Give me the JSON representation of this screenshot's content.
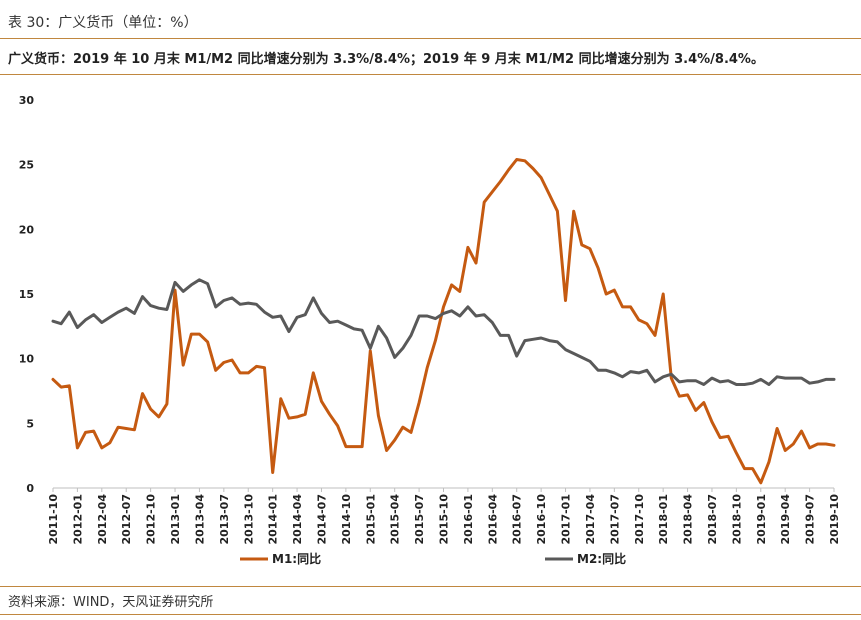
{
  "header": {
    "caption": "表 30：广义货币（单位：%）",
    "subtitle": "广义货币：2019 年 10 月末 M1/M2 同比增速分别为 3.3%/8.4%；2019 年 9 月末 M1/M2 同比增速分别为 3.4%/8.4%。"
  },
  "footer": {
    "source": "资料来源：WIND，天风证券研究所"
  },
  "colors": {
    "m1": "#c55a11",
    "m2": "#595959",
    "rule": "#c0873f"
  },
  "chart_data": {
    "type": "line",
    "title": "",
    "xlabel": "",
    "ylabel": "",
    "ylim": [
      0,
      30
    ],
    "yticks": [
      0,
      5,
      10,
      15,
      20,
      25,
      30
    ],
    "grid": false,
    "legend_position": "bottom",
    "x_tick_labels": [
      "2011-10",
      "2012-01",
      "2012-04",
      "2012-07",
      "2012-10",
      "2013-01",
      "2013-04",
      "2013-07",
      "2013-10",
      "2014-01",
      "2014-04",
      "2014-07",
      "2014-10",
      "2015-01",
      "2015-04",
      "2015-07",
      "2015-10",
      "2016-01",
      "2016-04",
      "2016-07",
      "2016-10",
      "2017-01",
      "2017-04",
      "2017-07",
      "2017-10",
      "2018-01",
      "2018-04",
      "2018-07",
      "2018-10",
      "2019-01",
      "2019-04",
      "2019-07",
      "2019-10"
    ],
    "x": [
      "2011-10",
      "2011-11",
      "2011-12",
      "2012-01",
      "2012-02",
      "2012-03",
      "2012-04",
      "2012-05",
      "2012-06",
      "2012-07",
      "2012-08",
      "2012-09",
      "2012-10",
      "2012-11",
      "2012-12",
      "2013-01",
      "2013-02",
      "2013-03",
      "2013-04",
      "2013-05",
      "2013-06",
      "2013-07",
      "2013-08",
      "2013-09",
      "2013-10",
      "2013-11",
      "2013-12",
      "2014-01",
      "2014-02",
      "2014-03",
      "2014-04",
      "2014-05",
      "2014-06",
      "2014-07",
      "2014-08",
      "2014-09",
      "2014-10",
      "2014-11",
      "2014-12",
      "2015-01",
      "2015-02",
      "2015-03",
      "2015-04",
      "2015-05",
      "2015-06",
      "2015-07",
      "2015-08",
      "2015-09",
      "2015-10",
      "2015-11",
      "2015-12",
      "2016-01",
      "2016-02",
      "2016-03",
      "2016-04",
      "2016-05",
      "2016-06",
      "2016-07",
      "2016-08",
      "2016-09",
      "2016-10",
      "2016-11",
      "2016-12",
      "2017-01",
      "2017-02",
      "2017-03",
      "2017-04",
      "2017-05",
      "2017-06",
      "2017-07",
      "2017-08",
      "2017-09",
      "2017-10",
      "2017-11",
      "2017-12",
      "2018-01",
      "2018-02",
      "2018-03",
      "2018-04",
      "2018-05",
      "2018-06",
      "2018-07",
      "2018-08",
      "2018-09",
      "2018-10",
      "2018-11",
      "2018-12",
      "2019-01",
      "2019-02",
      "2019-03",
      "2019-04",
      "2019-05",
      "2019-06",
      "2019-07",
      "2019-08",
      "2019-09",
      "2019-10"
    ],
    "series": [
      {
        "name": "M1:同比",
        "color": "#c55a11",
        "values": [
          8.4,
          7.8,
          7.9,
          3.1,
          4.3,
          4.4,
          3.1,
          3.5,
          4.7,
          4.6,
          4.5,
          7.3,
          6.1,
          5.5,
          6.5,
          15.3,
          9.5,
          11.9,
          11.9,
          11.3,
          9.1,
          9.7,
          9.9,
          8.9,
          8.9,
          9.4,
          9.3,
          1.2,
          6.9,
          5.4,
          5.5,
          5.7,
          8.9,
          6.7,
          5.7,
          4.8,
          3.2,
          3.2,
          3.2,
          10.6,
          5.6,
          2.9,
          3.7,
          4.7,
          4.3,
          6.6,
          9.3,
          11.4,
          14.0,
          15.7,
          15.2,
          18.6,
          17.4,
          22.1,
          22.9,
          23.7,
          24.6,
          25.4,
          25.3,
          24.7,
          24.0,
          22.7,
          21.4,
          14.5,
          21.4,
          18.8,
          18.5,
          17.0,
          15.0,
          15.3,
          14.0,
          14.0,
          13.0,
          12.7,
          11.8,
          15.0,
          8.5,
          7.1,
          7.2,
          6.0,
          6.6,
          5.1,
          3.9,
          4.0,
          2.7,
          1.5,
          1.5,
          0.4,
          2.0,
          4.6,
          2.9,
          3.4,
          4.4,
          3.1,
          3.4,
          3.4,
          3.3
        ]
      },
      {
        "name": "M2:同比",
        "color": "#595959",
        "values": [
          12.9,
          12.7,
          13.6,
          12.4,
          13.0,
          13.4,
          12.8,
          13.2,
          13.6,
          13.9,
          13.5,
          14.8,
          14.1,
          13.9,
          13.8,
          15.9,
          15.2,
          15.7,
          16.1,
          15.8,
          14.0,
          14.5,
          14.7,
          14.2,
          14.3,
          14.2,
          13.6,
          13.2,
          13.3,
          12.1,
          13.2,
          13.4,
          14.7,
          13.5,
          12.8,
          12.9,
          12.6,
          12.3,
          12.2,
          10.8,
          12.5,
          11.6,
          10.1,
          10.8,
          11.8,
          13.3,
          13.3,
          13.1,
          13.5,
          13.7,
          13.3,
          14.0,
          13.3,
          13.4,
          12.8,
          11.8,
          11.8,
          10.2,
          11.4,
          11.5,
          11.6,
          11.4,
          11.3,
          10.7,
          10.4,
          10.1,
          9.8,
          9.1,
          9.1,
          8.9,
          8.6,
          9.0,
          8.9,
          9.1,
          8.2,
          8.6,
          8.8,
          8.2,
          8.3,
          8.3,
          8.0,
          8.5,
          8.2,
          8.3,
          8.0,
          8.0,
          8.1,
          8.4,
          8.0,
          8.6,
          8.5,
          8.5,
          8.5,
          8.1,
          8.2,
          8.4,
          8.4
        ]
      }
    ]
  }
}
